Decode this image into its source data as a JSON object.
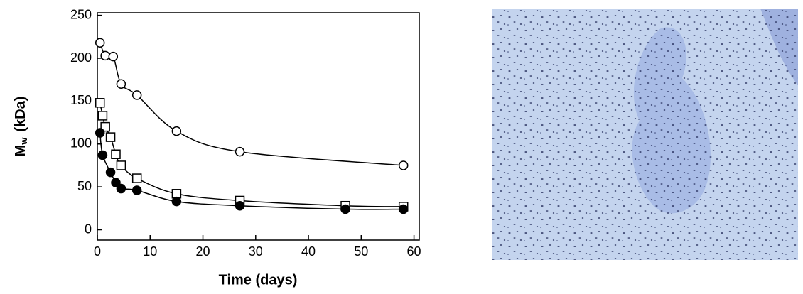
{
  "chart_data": {
    "type": "scatter",
    "xlabel": "Time (days)",
    "ylabel": {
      "main": "M",
      "sub": "w",
      "unit": "(kDa)"
    },
    "xlim": [
      0,
      61
    ],
    "ylim": [
      -12,
      253
    ],
    "xticks": [
      0,
      10,
      20,
      30,
      40,
      50,
      60
    ],
    "yticks": [
      0,
      50,
      100,
      150,
      200,
      250
    ],
    "lines": true,
    "series": [
      {
        "marker": "circle",
        "filled": false,
        "color": "#000000",
        "x": [
          0.5,
          1.5,
          3,
          4.5,
          7.5,
          15,
          27,
          58
        ],
        "values": [
          218,
          203,
          202,
          170,
          157,
          115,
          91,
          75
        ]
      },
      {
        "marker": "square",
        "filled": false,
        "color": "#000000",
        "x": [
          0.5,
          1,
          1.5,
          2.5,
          3.5,
          4.5,
          7.5,
          15,
          27,
          47,
          58
        ],
        "values": [
          148,
          133,
          120,
          108,
          88,
          75,
          60,
          42,
          34,
          28,
          27
        ]
      },
      {
        "marker": "circle",
        "filled": true,
        "color": "#000000",
        "x": [
          0.5,
          1,
          2.5,
          3.5,
          4.5,
          7.5,
          15,
          27,
          47,
          58
        ],
        "values": [
          113,
          87,
          67,
          55,
          48,
          46,
          33,
          28,
          24,
          24
        ]
      }
    ]
  }
}
